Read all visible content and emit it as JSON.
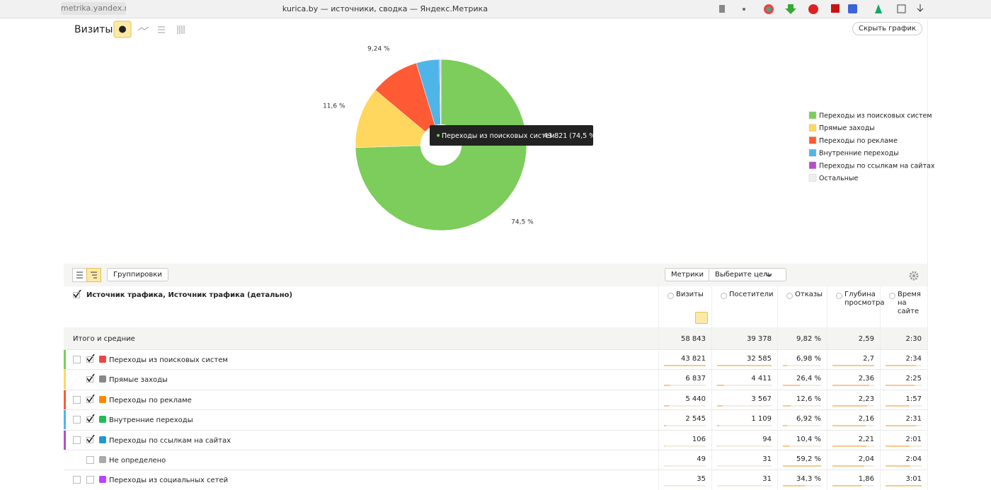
{
  "browser": {
    "url": "metrika.yandex.ru",
    "title": "kurica.by — источники, сводка — Яндекс.Метрика"
  },
  "toolbar": {
    "title": "Визиты",
    "hide_button": "Скрыть график"
  },
  "chart_data": {
    "type": "pie",
    "donut": true,
    "legend": "right",
    "categories": [
      "Переходы из поисковых систем",
      "Прямые заходы",
      "Переходы по рекламе",
      "Внутренние переходы",
      "Переходы по ссылкам на сайтах",
      "Остальные"
    ],
    "values": [
      74.5,
      11.6,
      9.24,
      4.33,
      0.18,
      0.15
    ],
    "value_labels": [
      "74,5 %",
      "11,6 %",
      "9,24 %",
      null,
      null,
      null
    ],
    "colors": [
      "#7ccd5b",
      "#ffd75e",
      "#ff5a36",
      "#4fb5e9",
      "#b44fc4",
      "#eeeeee"
    ]
  },
  "tooltip": {
    "name": "Переходы из поисковых систем",
    "value": "43 821 (74,5 %)"
  },
  "table": {
    "buttons": [
      "Группировки",
      "Метрики",
      "Выберите цель"
    ],
    "dimension": "Источник трафика, Источник трафика (детально)",
    "columns": [
      "Визиты",
      "Посетители",
      "Отказы",
      "Глубина просмотра",
      "Время на сайте"
    ],
    "total": {
      "label": "Итого и средние",
      "cells": [
        "58 843",
        "39 378",
        "9,82 %",
        "2,59",
        "2:30"
      ]
    },
    "rows": [
      {
        "label": "Переходы из поисковых систем",
        "cells": [
          "43 821",
          "32 585",
          "6,98 %",
          "2,7",
          "2:34"
        ]
      },
      {
        "label": "Прямые заходы",
        "cells": [
          "6 837",
          "4 411",
          "26,4 %",
          "2,36",
          "2:25"
        ]
      },
      {
        "label": "Переходы по рекламе",
        "cells": [
          "5 440",
          "3 567",
          "12,6 %",
          "2,23",
          "1:57"
        ]
      },
      {
        "label": "Внутренние переходы",
        "cells": [
          "2 545",
          "1 109",
          "6,92 %",
          "2,16",
          "2:31"
        ]
      },
      {
        "label": "Переходы по ссылкам на сайтах",
        "cells": [
          "106",
          "94",
          "10,4 %",
          "2,21",
          "2:01"
        ]
      },
      {
        "label": "Не определено",
        "cells": [
          "49",
          "31",
          "59,2 %",
          "2,04",
          "2:04"
        ]
      },
      {
        "label": "Переходы из социальных сетей",
        "cells": [
          "35",
          "31",
          "34,3 %",
          "1,86",
          "3:01"
        ]
      }
    ]
  }
}
